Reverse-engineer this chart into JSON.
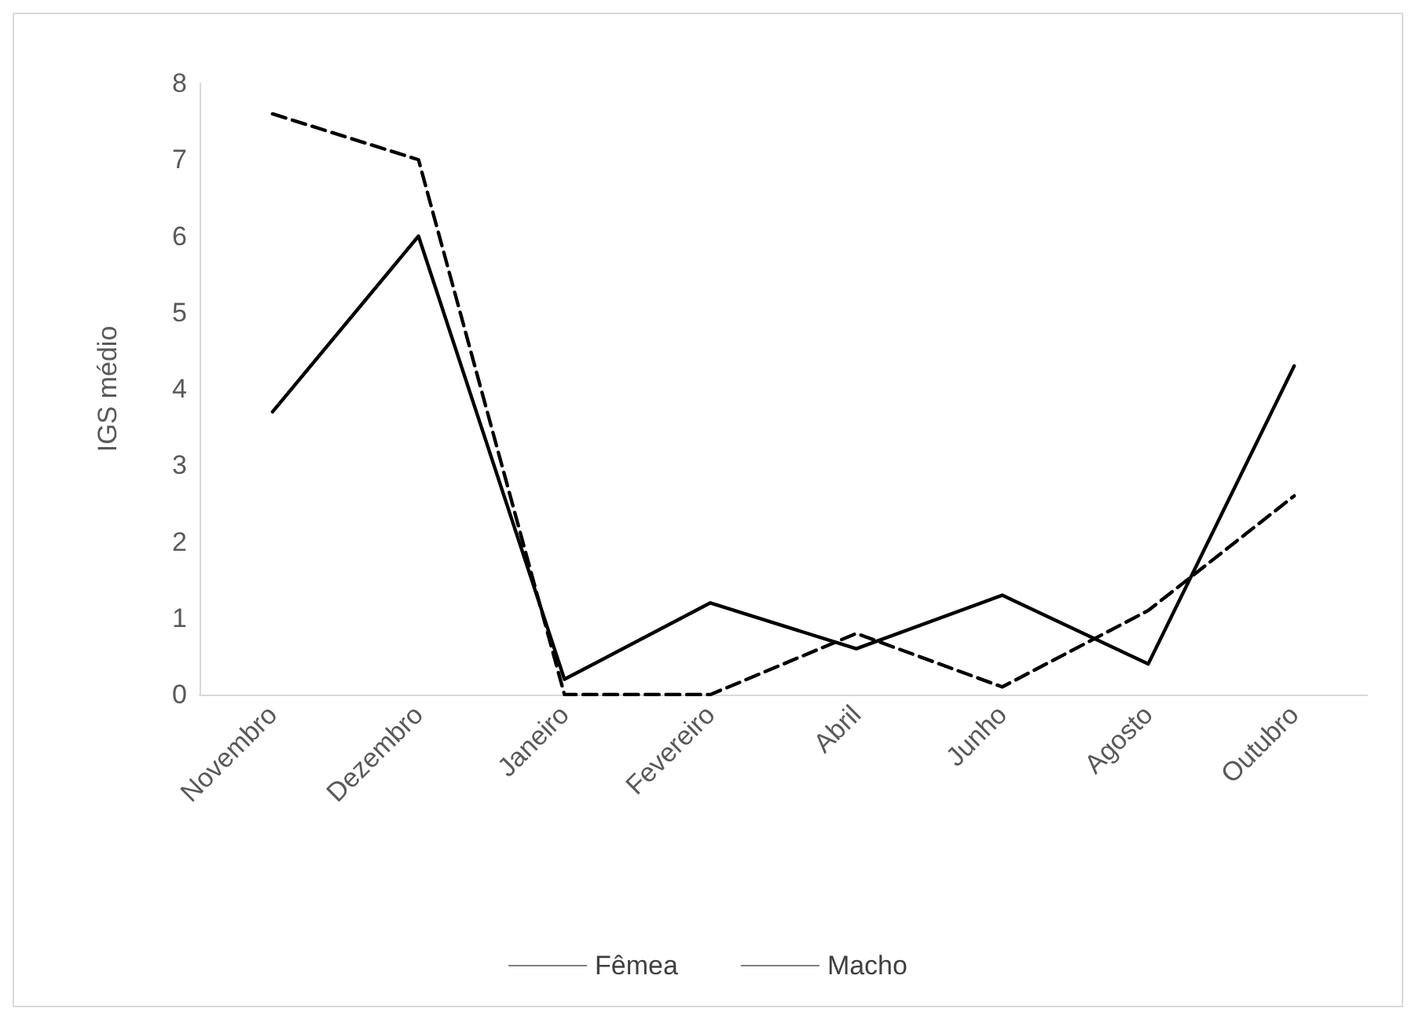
{
  "chart_data": {
    "type": "line",
    "ylabel": "IGS médio",
    "categories": [
      "Novembro",
      "Dezembro",
      "Janeiro",
      "Fevereiro",
      "Abril",
      "Junho",
      "Agosto",
      "Outubro"
    ],
    "series": [
      {
        "name": "Fêmea",
        "color": "#000000",
        "line_style": "dashed",
        "values": [
          7.6,
          7.0,
          0,
          0,
          0.8,
          0.1,
          1.1,
          2.6
        ]
      },
      {
        "name": "Macho",
        "color": "#000000",
        "line_style": "solid",
        "values": [
          3.7,
          6.0,
          0.2,
          1.2,
          0.6,
          1.3,
          0.4,
          4.3
        ]
      }
    ],
    "ylim": [
      0,
      8
    ],
    "yticks": [
      0,
      1,
      2,
      3,
      4,
      5,
      6,
      7,
      8
    ],
    "grid": false,
    "legend": "bottom",
    "marker": "none"
  }
}
